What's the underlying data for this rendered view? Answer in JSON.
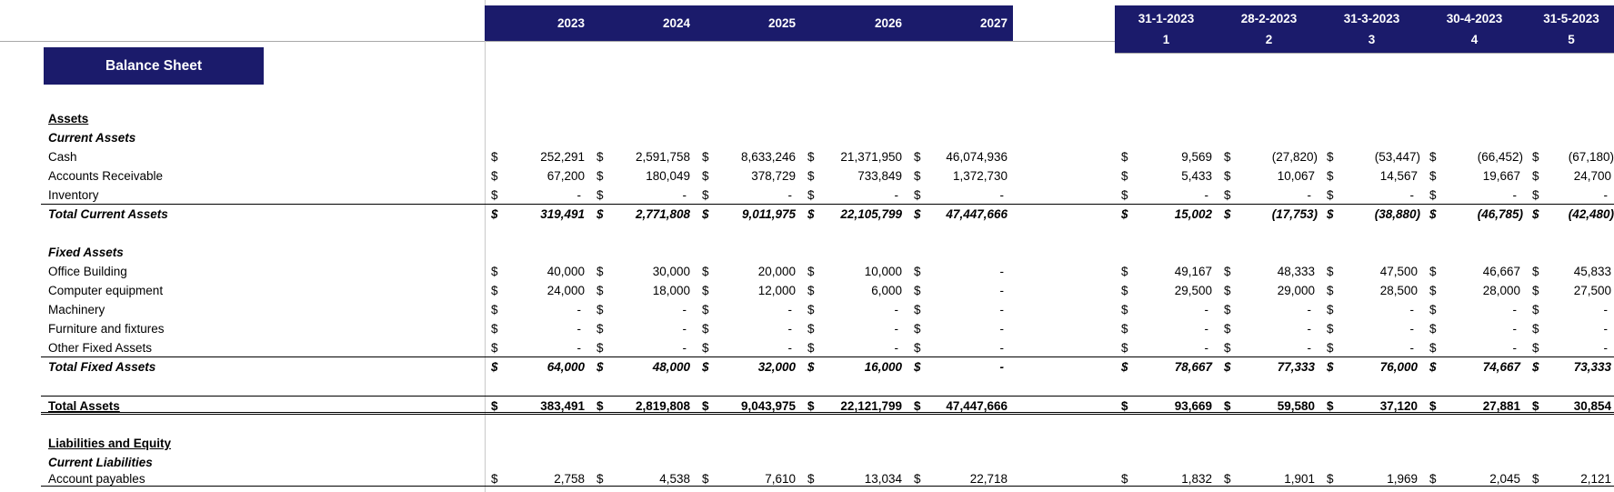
{
  "title": "Balance Sheet",
  "colors": {
    "header_bg": "#1b1b6b",
    "header_text": "#ffffff",
    "gridline": "#c9c9c9",
    "border": "#000000"
  },
  "columns": {
    "years": [
      "2023",
      "2024",
      "2025",
      "2026",
      "2027"
    ],
    "months": [
      {
        "date": "31-1-2023",
        "index": "1"
      },
      {
        "date": "28-2-2023",
        "index": "2"
      },
      {
        "date": "31-3-2023",
        "index": "3"
      },
      {
        "date": "30-4-2023",
        "index": "4"
      },
      {
        "date": "31-5-2023",
        "index": "5"
      }
    ]
  },
  "currency_symbol": "$",
  "rows": [
    {
      "label": "Assets",
      "style": "section"
    },
    {
      "label": "Current Assets",
      "style": "subsection"
    },
    {
      "label": "Cash",
      "style": "item",
      "years": [
        "252,291",
        "2,591,758",
        "8,633,246",
        "21,371,950",
        "46,074,936"
      ],
      "months": [
        "9,569",
        "(27,820)",
        "(53,447)",
        "(66,452)",
        "(67,180)"
      ]
    },
    {
      "label": "Accounts Receivable",
      "style": "item",
      "years": [
        "67,200",
        "180,049",
        "378,729",
        "733,849",
        "1,372,730"
      ],
      "months": [
        "5,433",
        "10,067",
        "14,567",
        "19,667",
        "24,700"
      ]
    },
    {
      "label": "Inventory",
      "style": "item",
      "border_bottom": true,
      "years": [
        "-",
        "-",
        "-",
        "-",
        "-"
      ],
      "months": [
        "-",
        "-",
        "-",
        "-",
        "-"
      ]
    },
    {
      "label": "Total Current Assets",
      "style": "total",
      "years": [
        "319,491",
        "2,771,808",
        "9,011,975",
        "22,105,799",
        "47,447,666"
      ],
      "months": [
        "15,002",
        "(17,753)",
        "(38,880)",
        "(46,785)",
        "(42,480)"
      ]
    },
    {
      "style": "blank"
    },
    {
      "label": "Fixed Assets",
      "style": "subsection"
    },
    {
      "label": "Office Building",
      "style": "item",
      "years": [
        "40,000",
        "30,000",
        "20,000",
        "10,000",
        "-"
      ],
      "months": [
        "49,167",
        "48,333",
        "47,500",
        "46,667",
        "45,833"
      ]
    },
    {
      "label": "Computer equipment",
      "style": "item",
      "years": [
        "24,000",
        "18,000",
        "12,000",
        "6,000",
        "-"
      ],
      "months": [
        "29,500",
        "29,000",
        "28,500",
        "28,000",
        "27,500"
      ]
    },
    {
      "label": "Machinery",
      "style": "item",
      "years": [
        "-",
        "-",
        "-",
        "-",
        "-"
      ],
      "months": [
        "-",
        "-",
        "-",
        "-",
        "-"
      ]
    },
    {
      "label": "Furniture and fixtures",
      "style": "item",
      "years": [
        "-",
        "-",
        "-",
        "-",
        "-"
      ],
      "months": [
        "-",
        "-",
        "-",
        "-",
        "-"
      ]
    },
    {
      "label": "Other Fixed Assets",
      "style": "item",
      "border_bottom": true,
      "years": [
        "-",
        "-",
        "-",
        "-",
        "-"
      ],
      "months": [
        "-",
        "-",
        "-",
        "-",
        "-"
      ]
    },
    {
      "label": "Total Fixed Assets",
      "style": "total",
      "years": [
        "64,000",
        "48,000",
        "32,000",
        "16,000",
        "-"
      ],
      "months": [
        "78,667",
        "77,333",
        "76,000",
        "74,667",
        "73,333"
      ]
    },
    {
      "style": "blank"
    },
    {
      "label": "Total Assets",
      "style": "grand_total",
      "years": [
        "383,491",
        "2,819,808",
        "9,043,975",
        "22,121,799",
        "47,447,666"
      ],
      "months": [
        "93,669",
        "59,580",
        "37,120",
        "27,881",
        "30,854"
      ]
    },
    {
      "style": "blank"
    },
    {
      "label": "Liabilities and Equity",
      "style": "section"
    },
    {
      "label": "Current Liabilities",
      "style": "subsection"
    },
    {
      "label": "Account payables",
      "style": "item",
      "border_bottom": true,
      "years": [
        "2,758",
        "4,538",
        "7,610",
        "13,034",
        "22,718"
      ],
      "months": [
        "1,832",
        "1,901",
        "1,969",
        "2,045",
        "2,121"
      ]
    }
  ]
}
